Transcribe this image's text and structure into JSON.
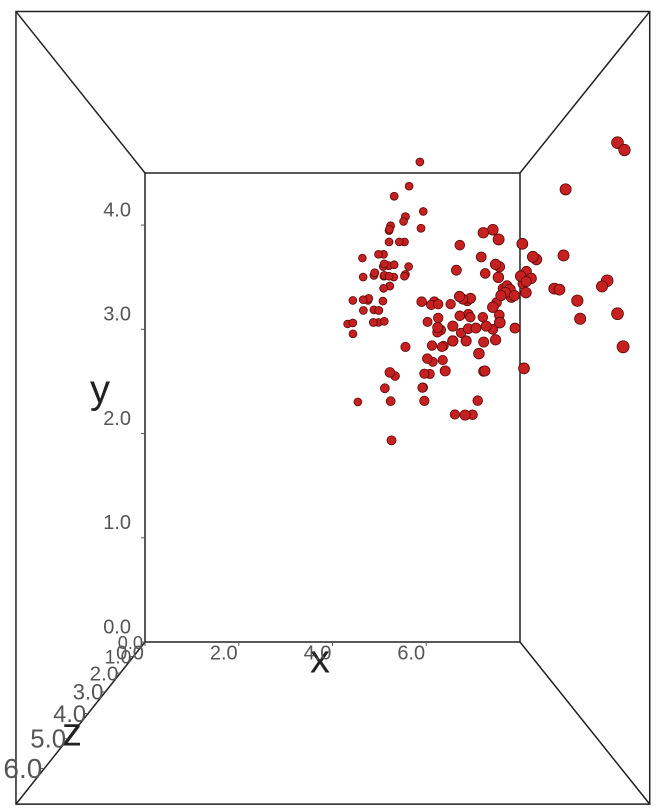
{
  "chart_data": {
    "type": "scatter3d",
    "color": "#c62020",
    "x_label": "x",
    "y_label": "y",
    "z_label": "z",
    "xlim": [
      0,
      8
    ],
    "ylim": [
      0,
      4.5
    ],
    "zlim": [
      0,
      7
    ],
    "xticks": [
      {
        "value": 0,
        "label": "0.0"
      },
      {
        "value": 2,
        "label": "2.0"
      },
      {
        "value": 4,
        "label": "4.0"
      },
      {
        "value": 6,
        "label": "6.0"
      }
    ],
    "yticks": [
      {
        "value": 0,
        "label": "0.0"
      },
      {
        "value": 1,
        "label": "1.0"
      },
      {
        "value": 2,
        "label": "2.0"
      },
      {
        "value": 3,
        "label": "3.0"
      },
      {
        "value": 4,
        "label": "4.0"
      }
    ],
    "zticks": [
      {
        "value": 0,
        "label": "0.0"
      },
      {
        "value": 1,
        "label": "1.0"
      },
      {
        "value": 2,
        "label": "2.0"
      },
      {
        "value": 3,
        "label": "3.0"
      },
      {
        "value": 4,
        "label": "4.0"
      },
      {
        "value": 5,
        "label": "5.0"
      },
      {
        "value": 6,
        "label": "6.0"
      }
    ],
    "x": [
      5.1,
      4.9,
      4.7,
      4.6,
      5.0,
      5.4,
      4.6,
      5.0,
      4.4,
      4.9,
      5.4,
      4.8,
      4.8,
      4.3,
      5.8,
      5.7,
      5.4,
      5.1,
      5.7,
      5.1,
      5.4,
      5.1,
      4.6,
      5.1,
      4.8,
      5.0,
      5.0,
      5.2,
      5.2,
      4.7,
      4.8,
      5.4,
      5.2,
      5.5,
      4.9,
      5.0,
      5.5,
      4.9,
      4.4,
      5.1,
      5.0,
      4.5,
      4.4,
      5.0,
      5.1,
      4.8,
      5.1,
      4.6,
      5.3,
      5.0,
      7.0,
      6.4,
      6.9,
      5.5,
      6.5,
      5.7,
      6.3,
      4.9,
      6.6,
      5.2,
      5.0,
      5.9,
      6.0,
      6.1,
      5.6,
      6.7,
      5.6,
      5.8,
      6.2,
      5.6,
      5.9,
      6.1,
      6.3,
      6.1,
      6.4,
      6.6,
      6.8,
      6.7,
      6.0,
      5.7,
      5.5,
      5.5,
      5.8,
      6.0,
      5.4,
      6.0,
      6.7,
      6.3,
      5.6,
      5.5,
      5.5,
      6.1,
      5.8,
      5.0,
      5.6,
      5.7,
      5.7,
      6.2,
      5.1,
      5.7,
      6.3,
      5.8,
      7.1,
      6.3,
      6.5,
      7.6,
      4.9,
      7.3,
      6.7,
      7.2,
      6.5,
      6.4,
      6.8,
      5.7,
      5.8,
      6.4,
      6.5,
      7.7,
      7.7,
      6.0,
      6.9,
      5.6,
      7.7,
      6.3,
      6.7,
      7.2,
      6.2,
      6.1,
      6.4,
      7.2,
      7.4,
      7.9,
      6.4,
      6.3,
      6.1,
      7.7,
      6.3,
      6.4,
      6.0,
      6.9,
      6.7,
      6.9,
      5.8,
      6.8,
      6.7,
      6.7,
      6.3,
      6.5,
      6.2,
      5.9
    ],
    "y": [
      3.5,
      3.0,
      3.2,
      3.1,
      3.6,
      3.9,
      3.4,
      3.4,
      2.9,
      3.1,
      3.7,
      3.4,
      3.0,
      3.0,
      4.0,
      4.4,
      3.9,
      3.5,
      3.8,
      3.8,
      3.4,
      3.7,
      3.6,
      3.3,
      3.4,
      3.0,
      3.4,
      3.5,
      3.4,
      3.2,
      3.1,
      3.4,
      4.1,
      4.2,
      3.1,
      3.2,
      3.5,
      3.6,
      3.0,
      3.4,
      3.5,
      2.3,
      3.2,
      3.5,
      3.8,
      3.0,
      3.8,
      3.2,
      3.7,
      3.3,
      3.2,
      3.2,
      3.1,
      2.3,
      2.8,
      2.8,
      3.3,
      2.4,
      2.9,
      2.7,
      2.0,
      3.0,
      2.2,
      2.9,
      2.9,
      3.1,
      3.0,
      2.7,
      2.2,
      2.5,
      3.2,
      2.8,
      2.5,
      2.8,
      2.9,
      3.0,
      2.8,
      3.0,
      2.9,
      2.6,
      2.4,
      2.4,
      2.7,
      2.7,
      3.0,
      3.4,
      3.1,
      2.3,
      3.0,
      2.5,
      2.6,
      3.0,
      2.6,
      2.3,
      2.7,
      3.0,
      2.9,
      2.9,
      2.5,
      2.8,
      3.3,
      2.7,
      3.0,
      2.9,
      3.0,
      3.0,
      2.5,
      2.9,
      2.5,
      3.6,
      3.2,
      2.7,
      3.0,
      2.5,
      2.8,
      3.2,
      3.0,
      3.8,
      2.6,
      2.2,
      3.2,
      2.8,
      2.8,
      2.7,
      3.3,
      3.2,
      2.8,
      3.0,
      2.8,
      3.0,
      2.8,
      3.8,
      2.8,
      2.8,
      2.6,
      3.0,
      3.4,
      3.1,
      3.0,
      3.1,
      3.1,
      3.1,
      2.7,
      3.2,
      3.3,
      3.0,
      2.5,
      3.0,
      3.4,
      3.0
    ],
    "z": [
      1.4,
      1.4,
      1.3,
      1.5,
      1.4,
      1.7,
      1.4,
      1.5,
      1.4,
      1.5,
      1.5,
      1.6,
      1.4,
      1.1,
      1.2,
      1.5,
      1.3,
      1.4,
      1.7,
      1.5,
      1.7,
      1.5,
      1.0,
      1.7,
      1.9,
      1.6,
      1.6,
      1.5,
      1.4,
      1.6,
      1.6,
      1.5,
      1.5,
      1.4,
      1.5,
      1.2,
      1.3,
      1.4,
      1.3,
      1.5,
      1.3,
      1.3,
      1.3,
      1.6,
      1.9,
      1.4,
      1.6,
      1.4,
      1.5,
      1.4,
      4.7,
      4.5,
      4.9,
      4.0,
      4.6,
      4.5,
      4.7,
      3.3,
      4.6,
      3.9,
      3.5,
      4.2,
      4.0,
      4.7,
      3.6,
      4.4,
      4.5,
      4.1,
      4.5,
      3.9,
      4.8,
      4.0,
      4.9,
      4.7,
      4.3,
      4.4,
      4.8,
      5.0,
      4.5,
      3.5,
      3.8,
      3.7,
      3.9,
      5.1,
      4.5,
      4.5,
      4.7,
      4.4,
      4.1,
      4.0,
      4.4,
      4.6,
      4.0,
      3.3,
      4.2,
      4.2,
      4.2,
      4.3,
      3.0,
      4.1,
      6.0,
      5.1,
      5.9,
      5.6,
      5.8,
      6.6,
      4.5,
      6.3,
      5.8,
      6.1,
      5.1,
      5.3,
      5.5,
      5.0,
      5.1,
      5.3,
      5.5,
      6.7,
      6.9,
      5.0,
      5.7,
      4.9,
      6.7,
      4.9,
      5.7,
      6.0,
      4.8,
      4.9,
      5.6,
      5.8,
      6.1,
      6.4,
      5.6,
      5.1,
      5.6,
      6.1,
      5.6,
      5.5,
      4.8,
      5.4,
      5.6,
      5.1,
      5.1,
      5.9,
      5.7,
      5.2,
      5.0,
      5.2,
      5.4,
      5.1
    ]
  }
}
